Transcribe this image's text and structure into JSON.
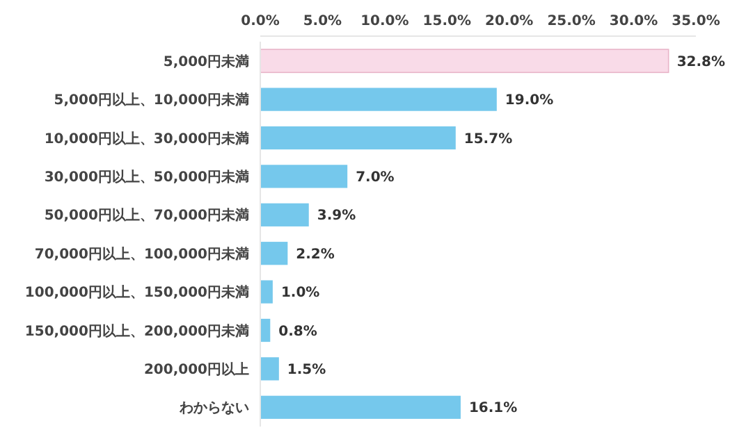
{
  "chart_data": {
    "type": "bar",
    "orientation": "horizontal",
    "categories": [
      "5,000円未満",
      "5,000円以上、10,000円未満",
      "10,000円以上、30,000円未満",
      "30,000円以上、50,000円未満",
      "50,000円以上、70,000円未満",
      "70,000円以上、100,000円未満",
      "100,000円以上、150,000円未満",
      "150,000円以上、200,000円未満",
      "200,000円以上",
      "わからない"
    ],
    "values": [
      32.8,
      19.0,
      15.7,
      7.0,
      3.9,
      2.2,
      1.0,
      0.8,
      1.5,
      16.1
    ],
    "colors": [
      "#f9dbe8",
      "#75c8ec",
      "#75c8ec",
      "#75c8ec",
      "#75c8ec",
      "#75c8ec",
      "#75c8ec",
      "#75c8ec",
      "#75c8ec",
      "#75c8ec"
    ],
    "value_labels": [
      "32.8%",
      "19.0%",
      "15.7%",
      "7.0%",
      "3.9%",
      "2.2%",
      "1.0%",
      "0.8%",
      "1.5%",
      "16.1%"
    ],
    "xlim": [
      0,
      35
    ],
    "xticks": [
      {
        "value": 0,
        "label": "0.0%"
      },
      {
        "value": 5,
        "label": "5.0%"
      },
      {
        "value": 10,
        "label": "10.0%"
      },
      {
        "value": 15,
        "label": "15.0%"
      },
      {
        "value": 20,
        "label": "20.0%"
      },
      {
        "value": 25,
        "label": "25.0%"
      },
      {
        "value": 30,
        "label": "30.0%"
      },
      {
        "value": 35,
        "label": "35.0%"
      }
    ],
    "grid": false
  }
}
